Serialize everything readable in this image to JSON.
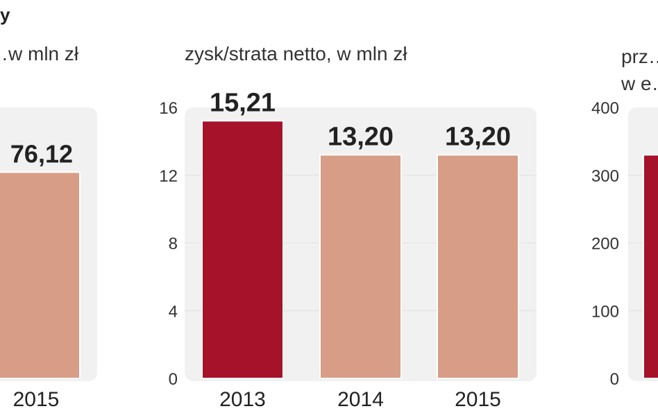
{
  "header": {
    "title_fragment": "y"
  },
  "colors": {
    "highlight": "#a5122a",
    "regular": "#d89d86",
    "panel": "#f1f1f1",
    "text": "#222222"
  },
  "chart_data": [
    {
      "type": "bar",
      "title": "…w mln zł",
      "categories": [
        "2015"
      ],
      "values": [
        76.12
      ],
      "value_labels": [
        "76,12"
      ],
      "highlight": [
        false
      ],
      "partial": true
    },
    {
      "type": "bar",
      "title": "zysk/strata netto, w mln zł",
      "categories": [
        "2013",
        "2014",
        "2015"
      ],
      "values": [
        15.21,
        13.2,
        13.2
      ],
      "value_labels": [
        "15,21",
        "13,20",
        "13,20"
      ],
      "highlight": [
        true,
        false,
        false
      ],
      "ylim": [
        0,
        16
      ],
      "yticks": [
        "0",
        "4",
        "8",
        "12",
        "16"
      ]
    },
    {
      "type": "bar",
      "title": "prz…",
      "title_line2": "w e…",
      "ylim": [
        0,
        400
      ],
      "yticks": [
        "0",
        "100",
        "200",
        "300",
        "400"
      ],
      "values": [
        330
      ],
      "highlight": [
        true
      ],
      "partial": true
    }
  ]
}
